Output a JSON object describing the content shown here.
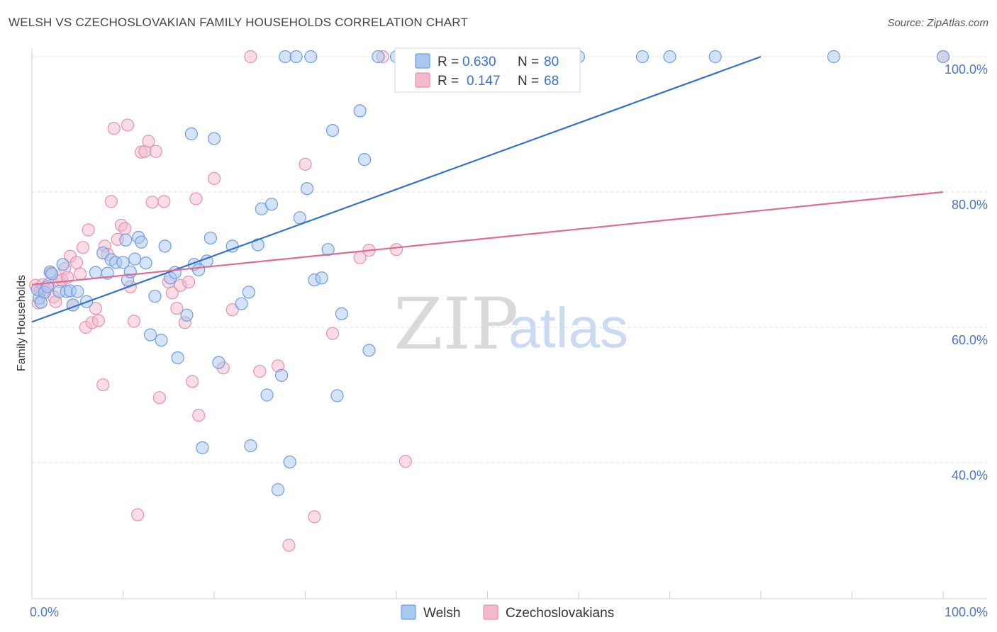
{
  "title": "WELSH VS CZECHOSLOVAKIAN FAMILY HOUSEHOLDS CORRELATION CHART",
  "source": "Source: ZipAtlas.com",
  "watermark": {
    "zip": "ZIP",
    "atlas": "atlas"
  },
  "legend": {
    "r_label": "R =",
    "n_label": "N =",
    "welsh_r": "0.630",
    "welsh_n": "80",
    "czech_r": "0.147",
    "czech_n": "68"
  },
  "bottom_legend": {
    "welsh": "Welsh",
    "czech": "Czechoslovakians"
  },
  "colors": {
    "welsh_fill": "#a9c8f0",
    "welsh_stroke": "#6d9de0",
    "welsh_line": "#2e6fce",
    "czech_fill": "#f4b9cc",
    "czech_stroke": "#e891ae",
    "czech_line": "#e06a96",
    "grid": "#e2e2e2",
    "tick_text": "#4a78c4"
  },
  "chart_data": {
    "type": "scatter",
    "title": "WELSH VS CZECHOSLOVAKIAN FAMILY HOUSEHOLDS CORRELATION CHART",
    "xlabel": "",
    "ylabel": "Family Households",
    "xlim": [
      0,
      100
    ],
    "ylim": [
      22,
      104
    ],
    "x_tick_labels": [
      {
        "value": 0,
        "label": "0.0%"
      },
      {
        "value": 100,
        "label": "100.0%"
      }
    ],
    "y_tick_labels": [
      {
        "value": 40,
        "label": "40.0%"
      },
      {
        "value": 60,
        "label": "60.0%"
      },
      {
        "value": 80,
        "label": "80.0%"
      },
      {
        "value": 100,
        "label": "100.0%"
      }
    ],
    "grid": true,
    "legend_position": "top-center",
    "series": [
      {
        "name": "Welsh",
        "r": 0.63,
        "n": 80,
        "trend": {
          "x": [
            0,
            80
          ],
          "y": [
            60.8,
            100
          ]
        },
        "points": [
          [
            0.8,
            64.3
          ],
          [
            0.6,
            65.6
          ],
          [
            1.0,
            63.7
          ],
          [
            1.4,
            65.2
          ],
          [
            1.7,
            66.0
          ],
          [
            2.0,
            68.2
          ],
          [
            2.2,
            67.9
          ],
          [
            3.0,
            65.3
          ],
          [
            3.4,
            69.3
          ],
          [
            3.8,
            65.3
          ],
          [
            4.2,
            65.4
          ],
          [
            4.5,
            63.3
          ],
          [
            5.0,
            65.3
          ],
          [
            6.0,
            63.8
          ],
          [
            7.0,
            68.1
          ],
          [
            7.8,
            71.0
          ],
          [
            8.3,
            68.0
          ],
          [
            8.7,
            70.0
          ],
          [
            9.2,
            69.6
          ],
          [
            10.0,
            69.6
          ],
          [
            10.3,
            72.9
          ],
          [
            10.5,
            67.0
          ],
          [
            10.8,
            68.2
          ],
          [
            11.3,
            70.1
          ],
          [
            11.7,
            73.3
          ],
          [
            12.0,
            72.6
          ],
          [
            12.5,
            69.5
          ],
          [
            13.0,
            58.9
          ],
          [
            13.5,
            64.6
          ],
          [
            14.2,
            58.1
          ],
          [
            14.6,
            72.0
          ],
          [
            15.2,
            67.3
          ],
          [
            15.7,
            68.1
          ],
          [
            16.0,
            55.5
          ],
          [
            17.0,
            61.8
          ],
          [
            17.5,
            88.6
          ],
          [
            17.8,
            69.3
          ],
          [
            18.3,
            68.5
          ],
          [
            18.7,
            42.2
          ],
          [
            19.2,
            69.8
          ],
          [
            19.6,
            73.2
          ],
          [
            20.0,
            87.9
          ],
          [
            20.5,
            54.8
          ],
          [
            22.0,
            72.0
          ],
          [
            23.0,
            63.5
          ],
          [
            23.8,
            65.2
          ],
          [
            24.0,
            42.5
          ],
          [
            24.8,
            72.2
          ],
          [
            25.2,
            77.5
          ],
          [
            25.8,
            50.0
          ],
          [
            26.3,
            78.2
          ],
          [
            27.0,
            36.0
          ],
          [
            27.4,
            52.9
          ],
          [
            27.8,
            100.0
          ],
          [
            28.3,
            40.1
          ],
          [
            29.0,
            100.0
          ],
          [
            29.4,
            76.2
          ],
          [
            30.2,
            80.5
          ],
          [
            30.6,
            100.0
          ],
          [
            31.0,
            67.0
          ],
          [
            31.8,
            67.3
          ],
          [
            32.5,
            71.5
          ],
          [
            33.0,
            89.1
          ],
          [
            33.5,
            49.9
          ],
          [
            34.0,
            62.0
          ],
          [
            36.0,
            92.0
          ],
          [
            36.5,
            84.8
          ],
          [
            37.0,
            56.6
          ],
          [
            38.0,
            100.0
          ],
          [
            40.0,
            100.0
          ],
          [
            42.0,
            100.0
          ],
          [
            45.0,
            100.0
          ],
          [
            48.0,
            100.0
          ],
          [
            54.0,
            100.0
          ],
          [
            60.0,
            100.0
          ],
          [
            67.0,
            100.0
          ],
          [
            70.0,
            100.0
          ],
          [
            75.0,
            100.0
          ],
          [
            88.0,
            100.0
          ],
          [
            100.0,
            100.0
          ]
        ]
      },
      {
        "name": "Czechoslovakians",
        "r": 0.147,
        "n": 68,
        "trend": {
          "x": [
            0,
            100
          ],
          "y": [
            66.3,
            80.0
          ]
        },
        "points": [
          [
            0.4,
            66.2
          ],
          [
            0.7,
            63.6
          ],
          [
            0.9,
            65.4
          ],
          [
            1.2,
            66.3
          ],
          [
            1.5,
            65.6
          ],
          [
            1.8,
            66.4
          ],
          [
            2.1,
            68.0
          ],
          [
            2.4,
            64.5
          ],
          [
            2.6,
            63.8
          ],
          [
            3.0,
            66.8
          ],
          [
            3.3,
            67.0
          ],
          [
            3.6,
            68.7
          ],
          [
            3.9,
            67.4
          ],
          [
            4.2,
            70.5
          ],
          [
            4.5,
            63.3
          ],
          [
            4.9,
            69.6
          ],
          [
            5.3,
            67.9
          ],
          [
            5.6,
            71.8
          ],
          [
            5.9,
            60.0
          ],
          [
            6.2,
            74.4
          ],
          [
            6.6,
            60.7
          ],
          [
            7.0,
            62.8
          ],
          [
            7.3,
            61.0
          ],
          [
            7.8,
            51.5
          ],
          [
            8.0,
            72.0
          ],
          [
            8.3,
            70.8
          ],
          [
            8.7,
            78.6
          ],
          [
            9.0,
            89.4
          ],
          [
            9.4,
            73.0
          ],
          [
            9.8,
            75.1
          ],
          [
            10.2,
            74.6
          ],
          [
            10.5,
            89.9
          ],
          [
            10.8,
            66.0
          ],
          [
            11.2,
            60.9
          ],
          [
            11.6,
            32.3
          ],
          [
            12.0,
            85.9
          ],
          [
            12.4,
            86.0
          ],
          [
            12.8,
            87.5
          ],
          [
            13.2,
            78.5
          ],
          [
            13.6,
            86.0
          ],
          [
            14.0,
            49.6
          ],
          [
            14.5,
            78.6
          ],
          [
            15.0,
            66.7
          ],
          [
            15.4,
            65.1
          ],
          [
            15.9,
            62.8
          ],
          [
            16.3,
            66.2
          ],
          [
            16.8,
            60.7
          ],
          [
            17.2,
            66.7
          ],
          [
            17.6,
            52.0
          ],
          [
            18.0,
            79.0
          ],
          [
            18.3,
            47.0
          ],
          [
            20.0,
            82.0
          ],
          [
            21.0,
            54.0
          ],
          [
            22.0,
            62.6
          ],
          [
            24.0,
            100.0
          ],
          [
            25.0,
            53.5
          ],
          [
            27.0,
            54.3
          ],
          [
            28.2,
            27.8
          ],
          [
            30.0,
            84.1
          ],
          [
            31.0,
            32.0
          ],
          [
            33.0,
            59.1
          ],
          [
            36.0,
            70.3
          ],
          [
            37.0,
            71.4
          ],
          [
            40.0,
            71.5
          ],
          [
            41.0,
            40.2
          ],
          [
            43.0,
            100.0
          ],
          [
            38.5,
            100.0
          ],
          [
            100.0,
            100.0
          ]
        ]
      }
    ]
  }
}
